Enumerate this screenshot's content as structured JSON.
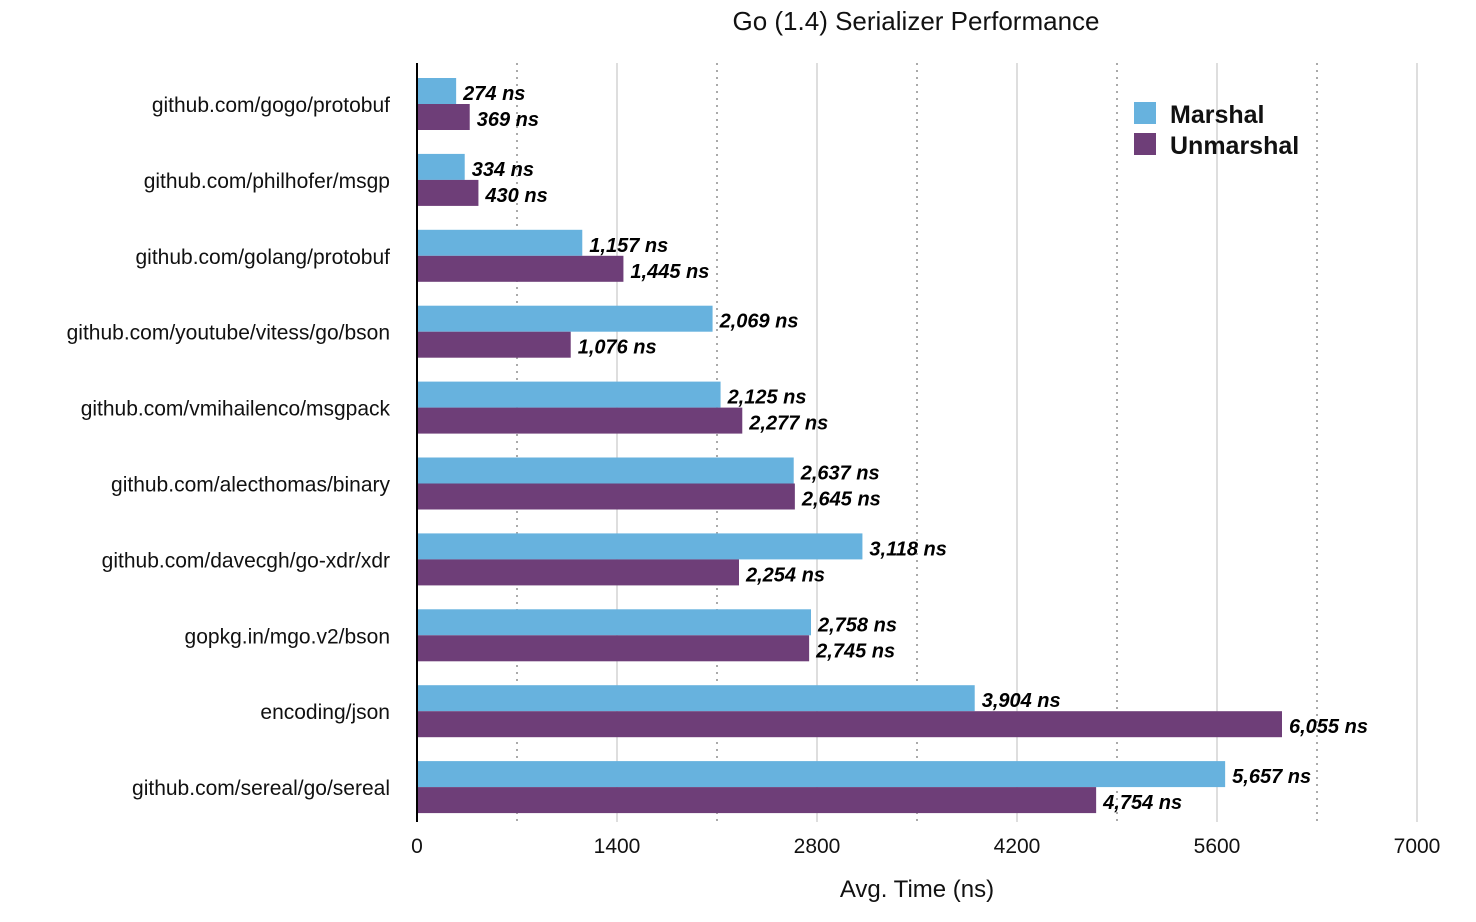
{
  "chart_data": {
    "type": "bar",
    "orientation": "horizontal",
    "title": "Go (1.4) Serializer Performance",
    "xlabel": "Avg. Time (ns)",
    "ylabel": "",
    "xlim": [
      0,
      7000
    ],
    "xticks": [
      "0",
      "1400",
      "2800",
      "4200",
      "5600",
      "7000"
    ],
    "grid": true,
    "legend_position": "top-right",
    "categories": [
      "github.com/gogo/protobuf",
      "github.com/philhofer/msgp",
      "github.com/golang/protobuf",
      "github.com/youtube/vitess/go/bson",
      "github.com/vmihailenco/msgpack",
      "github.com/alecthomas/binary",
      "github.com/davecgh/go-xdr/xdr",
      "gopkg.in/mgo.v2/bson",
      "encoding/json",
      "github.com/sereal/go/sereal"
    ],
    "series": [
      {
        "name": "Marshal",
        "color": "#67b2de",
        "values": [
          274,
          334,
          1157,
          2069,
          2125,
          2637,
          3118,
          2758,
          3904,
          5657
        ],
        "labels": [
          "274 ns",
          "334 ns",
          "1,157 ns",
          "2,069 ns",
          "2,125 ns",
          "2,637 ns",
          "3,118 ns",
          "2,758 ns",
          "3,904 ns",
          "5,657 ns"
        ]
      },
      {
        "name": "Unmarshal",
        "color": "#6e3e78",
        "values": [
          369,
          430,
          1445,
          1076,
          2277,
          2645,
          2254,
          2745,
          6055,
          4754
        ],
        "labels": [
          "369 ns",
          "430 ns",
          "1,445 ns",
          "1,076 ns",
          "2,277 ns",
          "2,645 ns",
          "2,254 ns",
          "2,745 ns",
          "6,055 ns",
          "4,754 ns"
        ]
      }
    ]
  }
}
